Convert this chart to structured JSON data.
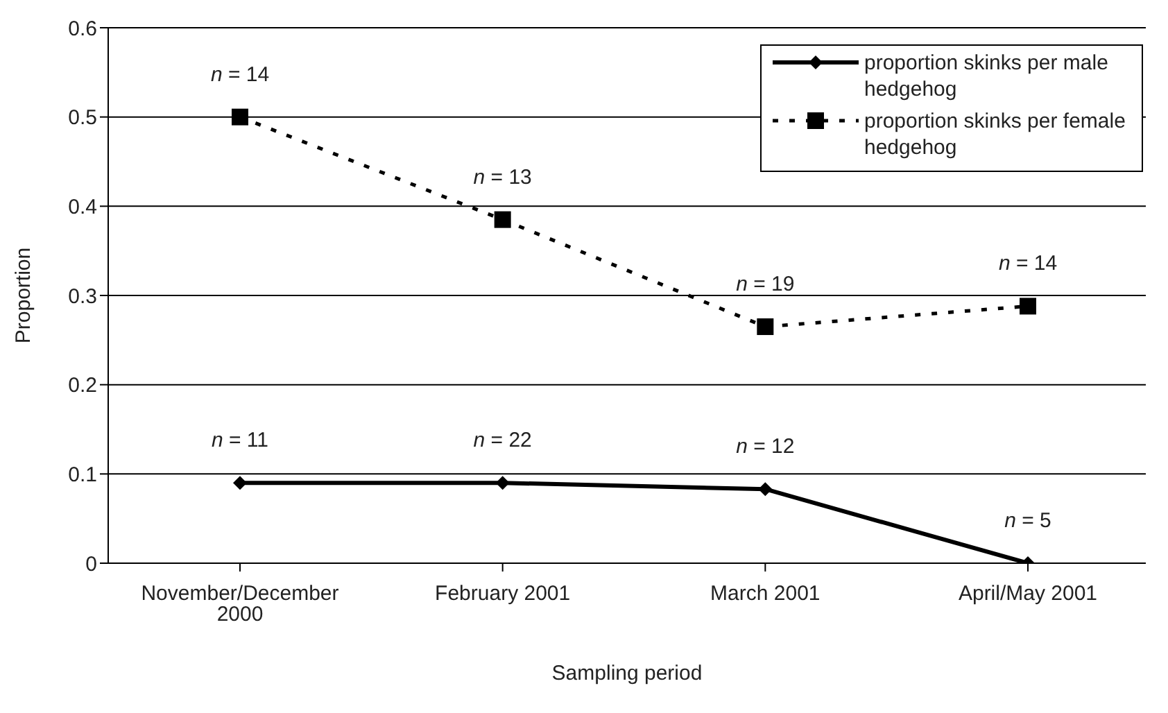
{
  "chart_data": {
    "type": "line",
    "xlabel": "Sampling period",
    "ylabel": "Proportion",
    "categories": [
      "November/December 2000",
      "February 2001",
      "March 2001",
      "April/May 2001"
    ],
    "series": [
      {
        "name": "proportion skinks per male hedgehog",
        "color": "#000000",
        "values": [
          0.09,
          0.09,
          0.083,
          0
        ],
        "marker": "diamond",
        "line_style": "solid"
      },
      {
        "name": "proportion skinks per female hedgehog",
        "color": "#000000",
        "values": [
          0.5,
          0.385,
          0.265,
          0.288
        ],
        "marker": "square",
        "line_style": "dashed"
      }
    ],
    "ylim": [
      0,
      0.6
    ],
    "yticks": [
      0,
      0.1,
      0.2,
      0.3,
      0.4,
      0.5,
      0.6
    ],
    "grid": "y",
    "legend": "top right",
    "annotations": [
      {
        "text": "n = 11",
        "x": "November/December 2000",
        "y": 0.09
      },
      {
        "text": "n = 22",
        "x": "February 2001",
        "y": 0.09
      },
      {
        "text": "n = 12",
        "x": "March 2001",
        "y": 0.083
      },
      {
        "text": "n = 5",
        "x": "April/May 2001",
        "y": 0
      },
      {
        "text": "n = 14",
        "x": "November/December 2000",
        "y": 0.5
      },
      {
        "text": "n = 13",
        "x": "February 2001",
        "y": 0.385
      },
      {
        "text": "n = 19",
        "x": "March 2001",
        "y": 0.265
      },
      {
        "text": "n = 14",
        "x": "April/May 2001",
        "y": 0.288
      }
    ]
  }
}
